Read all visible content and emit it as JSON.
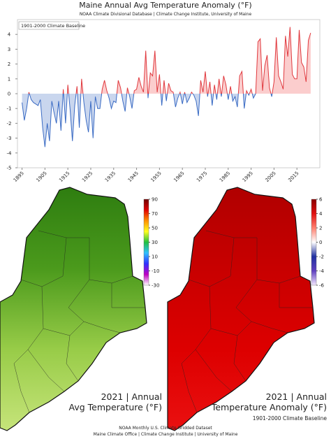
{
  "chart_data": {
    "type": "line",
    "title": "Maine Annual Avg Temperature Anomaly (°F)",
    "subtitle": "NOAA Climate Divisional Database | Climate Change Institute, University of Maine",
    "annotation": "1901-2000 Climate Baseline",
    "x": [
      1895,
      1896,
      1897,
      1898,
      1899,
      1900,
      1901,
      1902,
      1903,
      1904,
      1905,
      1906,
      1907,
      1908,
      1909,
      1910,
      1911,
      1912,
      1913,
      1914,
      1915,
      1916,
      1917,
      1918,
      1919,
      1920,
      1921,
      1922,
      1923,
      1924,
      1925,
      1926,
      1927,
      1928,
      1929,
      1930,
      1931,
      1932,
      1933,
      1934,
      1935,
      1936,
      1937,
      1938,
      1939,
      1940,
      1941,
      1942,
      1943,
      1944,
      1945,
      1946,
      1947,
      1948,
      1949,
      1950,
      1951,
      1952,
      1953,
      1954,
      1955,
      1956,
      1957,
      1958,
      1959,
      1960,
      1961,
      1962,
      1963,
      1964,
      1965,
      1966,
      1967,
      1968,
      1969,
      1970,
      1971,
      1972,
      1973,
      1974,
      1975,
      1976,
      1977,
      1978,
      1979,
      1980,
      1981,
      1982,
      1983,
      1984,
      1985,
      1986,
      1987,
      1988,
      1989,
      1990,
      1991,
      1992,
      1993,
      1994,
      1995,
      1996,
      1997,
      1998,
      1999,
      2000,
      2001,
      2002,
      2003,
      2004,
      2005,
      2006,
      2007,
      2008,
      2009,
      2010,
      2011,
      2012,
      2013,
      2014,
      2015,
      2016,
      2017,
      2018,
      2019,
      2020,
      2021
    ],
    "values": [
      -0.6,
      -1.8,
      -1.0,
      0.1,
      -0.4,
      -0.6,
      -0.7,
      -0.8,
      -0.4,
      -2.3,
      -3.6,
      -2.0,
      -3.2,
      -0.5,
      -1.3,
      -2.0,
      -0.5,
      -2.5,
      0.3,
      -2.0,
      0.6,
      -1.1,
      -3.2,
      -0.8,
      0.5,
      -2.3,
      1.0,
      -0.6,
      -1.8,
      -2.6,
      -0.5,
      -3.0,
      -0.2,
      -1.0,
      -1.0,
      0.3,
      0.9,
      0.2,
      -0.3,
      -1.0,
      -0.5,
      -0.6,
      0.9,
      0.4,
      -0.5,
      -1.2,
      0.4,
      -0.2,
      -1.0,
      0.2,
      0.3,
      1.1,
      0.5,
      0.1,
      2.9,
      -0.3,
      1.4,
      1.2,
      2.9,
      0.1,
      1.3,
      -0.8,
      0.9,
      -0.5,
      0.7,
      0.2,
      0.1,
      -0.9,
      -0.3,
      0.1,
      -0.7,
      0.1,
      -0.6,
      -0.3,
      0.1,
      -0.1,
      -0.5,
      -1.5,
      0.9,
      0.1,
      1.5,
      -0.2,
      0.8,
      -0.8,
      0.6,
      -0.4,
      1.0,
      -0.2,
      1.2,
      0.6,
      -0.4,
      0.5,
      -0.5,
      -0.2,
      -0.9,
      1.2,
      1.5,
      -1.0,
      0.2,
      -0.1,
      0.3,
      -0.3,
      0.0,
      3.5,
      3.7,
      0.2,
      1.9,
      2.6,
      0.4,
      -0.2,
      0.8,
      3.8,
      1.2,
      0.8,
      0.3,
      3.9,
      2.5,
      4.5,
      1.3,
      1.0,
      1.0,
      4.3,
      2.1,
      1.8,
      0.8,
      3.6,
      4.1
    ],
    "positive_color": "#e0393e",
    "negative_color": "#3a6bc4",
    "positive_fill": "#fbcdcd",
    "negative_fill": "#c9d6ee",
    "xlim": [
      1893,
      2025
    ],
    "xticks": [
      1895,
      1905,
      1915,
      1925,
      1935,
      1945,
      1955,
      1965,
      1975,
      1985,
      1995,
      2005,
      2015
    ],
    "ylim": [
      -5,
      5
    ],
    "yticks": [
      -5,
      -4,
      -3,
      -2,
      -1,
      0,
      1,
      2,
      3,
      4
    ]
  },
  "maps": [
    {
      "title_lines": [
        "2021 | Annual",
        "Avg Temperature (°F)"
      ],
      "clim": [
        -30,
        90
      ],
      "colorbar_ticks": [
        90,
        70,
        50,
        30,
        10,
        -10,
        -30
      ],
      "colorbar_colors": [
        "#ffffff",
        "#c000c0",
        "#3030ff",
        "#30c0ff",
        "#20c040",
        "#ffff20",
        "#ff9000",
        "#e00000",
        "#700000"
      ],
      "fill_colors": [
        "#2e7d10",
        "#4b9a1c",
        "#98cc48",
        "#c6e47a"
      ]
    },
    {
      "title_lines": [
        "2021 | Annual",
        "Temperature Anomaly (°F)"
      ],
      "subtitle": "1901-2000 Climate Baseline",
      "clim": [
        -6,
        6
      ],
      "colorbar_ticks": [
        6,
        4,
        2,
        0,
        -2,
        -4,
        -6
      ],
      "colorbar_colors": [
        "#f4e8ff",
        "#6040c0",
        "#2030a0",
        "#ffffff",
        "#ff8070",
        "#e01010",
        "#8a0000"
      ],
      "fill_colors": [
        "#b00000",
        "#c80000",
        "#dd0000",
        "#ea1010"
      ]
    }
  ],
  "footer": [
    "NOAA Monthly U.S. Climate Gridded Dataset",
    "Maine Climate Office | Climate Change Institute | University of Maine"
  ]
}
